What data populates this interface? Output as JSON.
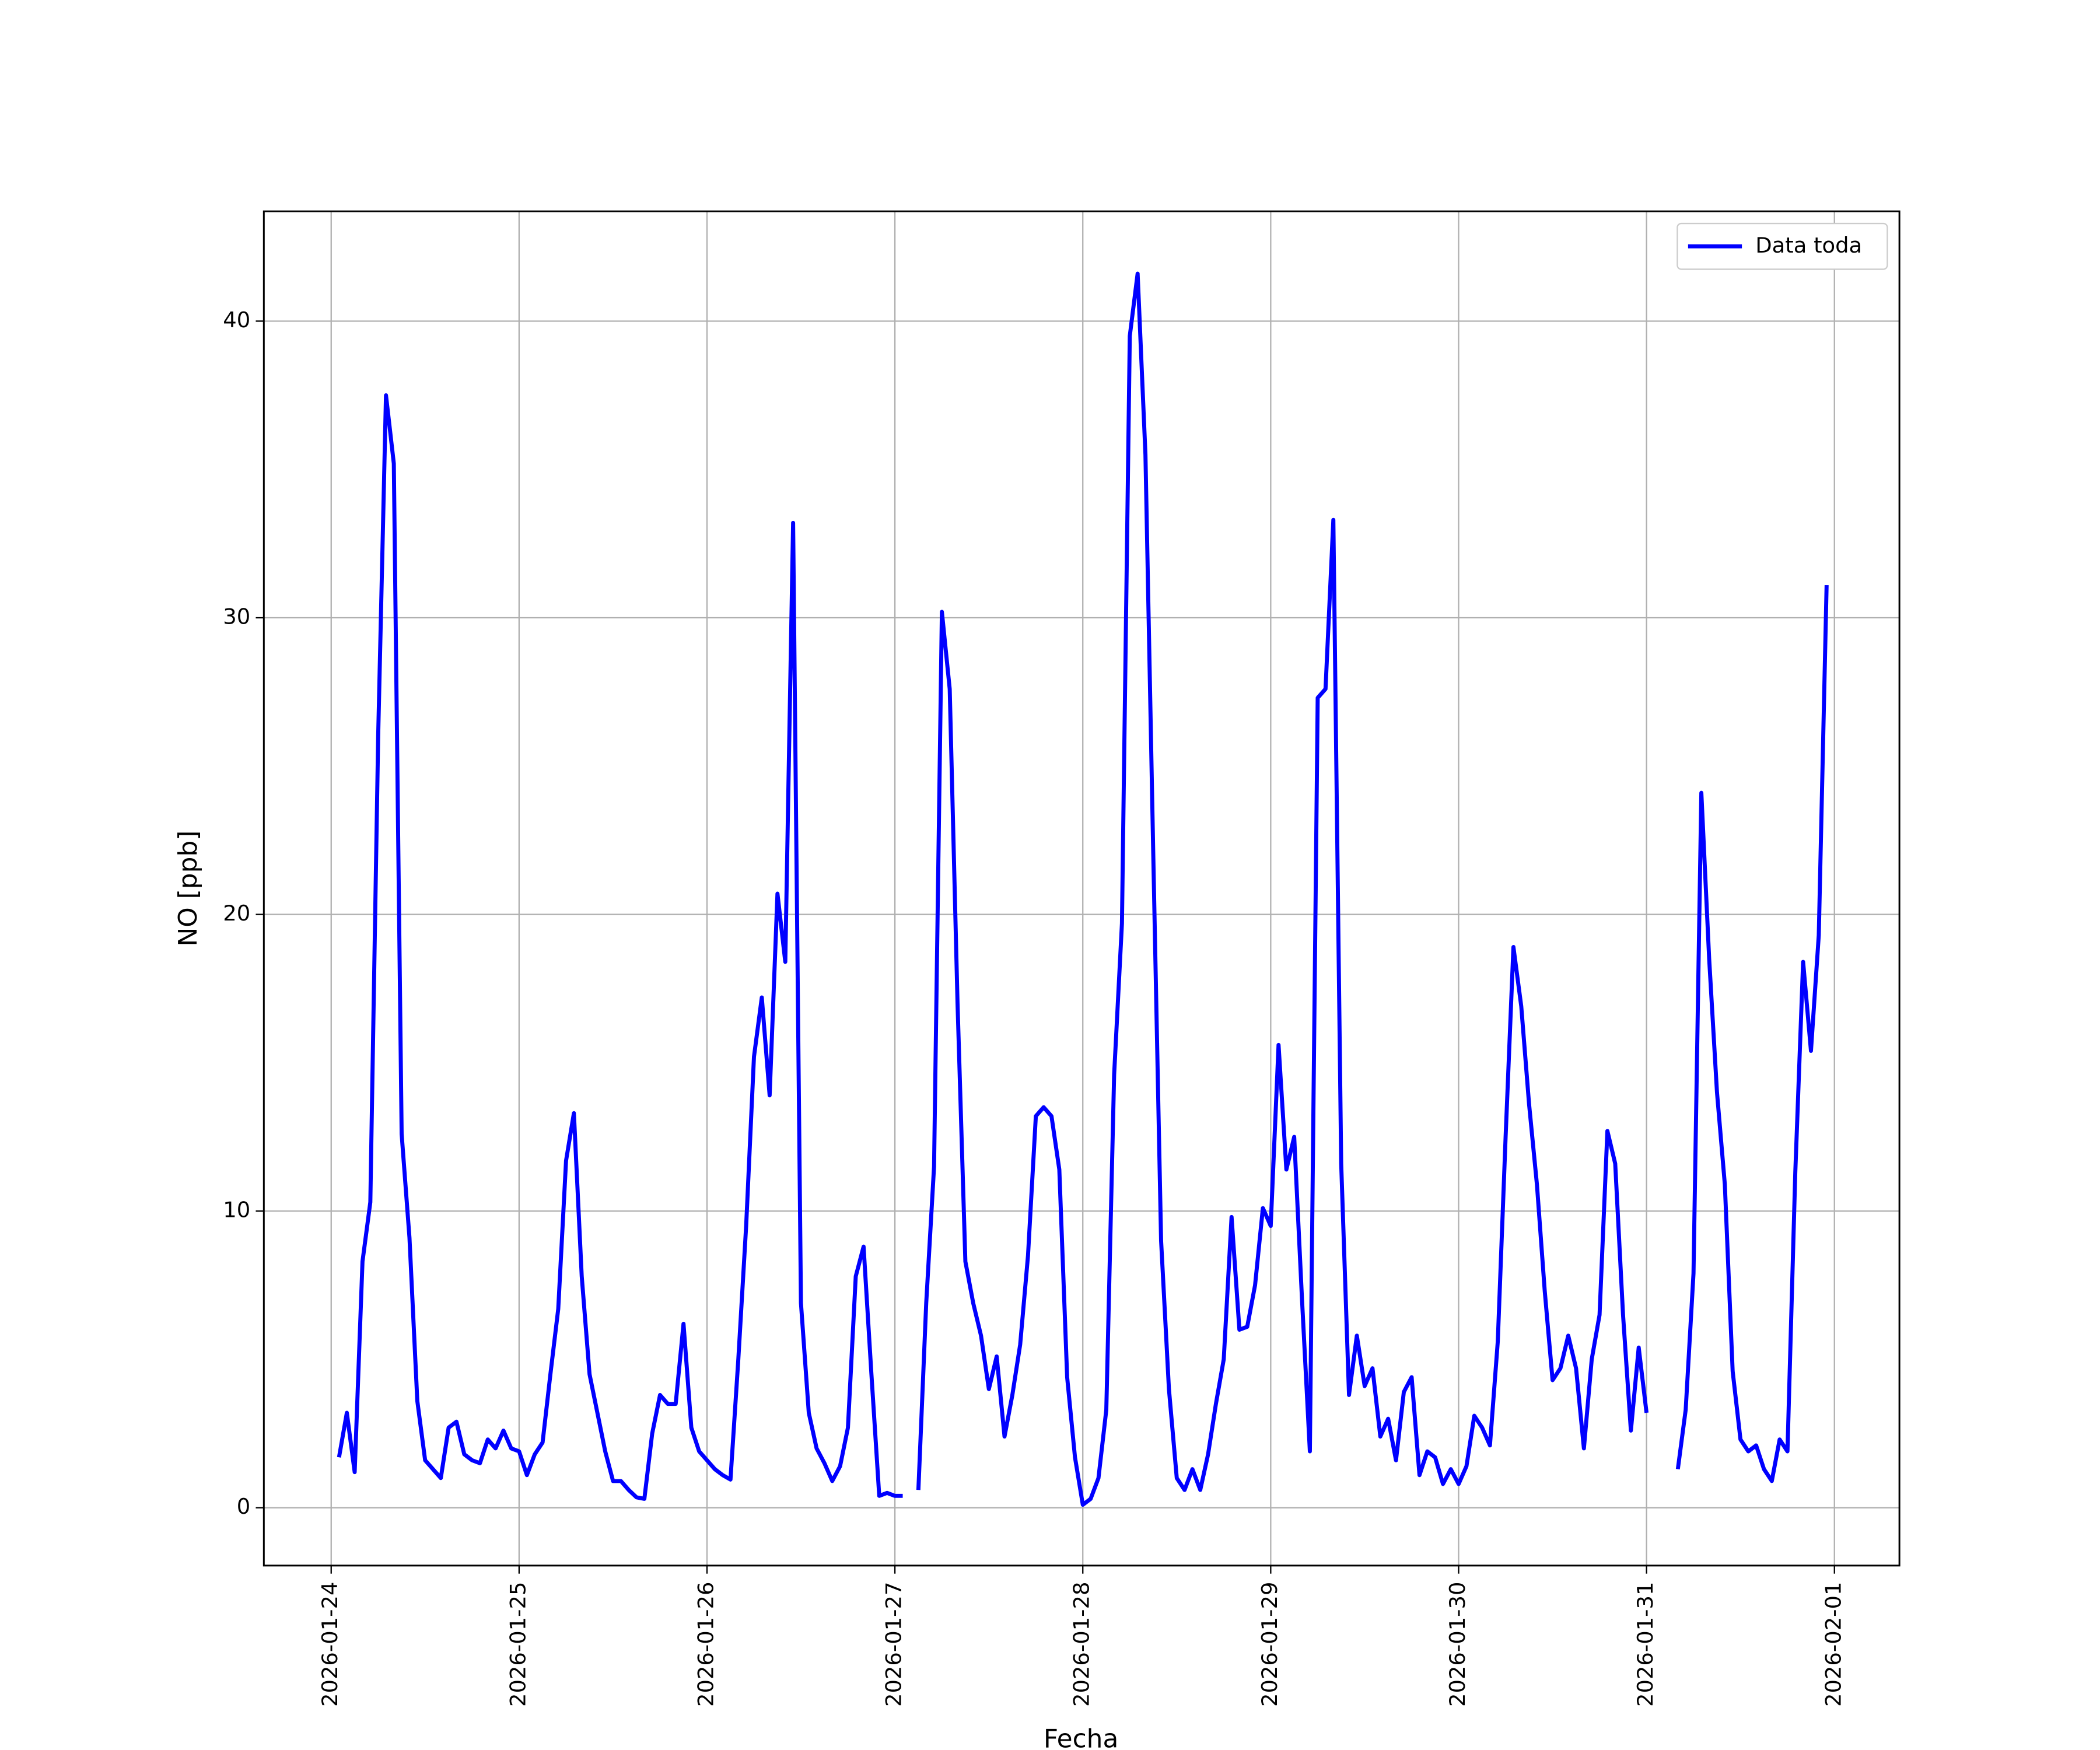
{
  "chart_data": {
    "type": "line",
    "xlabel": "Fecha",
    "ylabel": "NO [ppb]",
    "x": [
      1,
      2,
      3,
      4,
      5,
      6,
      7,
      8,
      9,
      10,
      11,
      12,
      13,
      14,
      15,
      16,
      17,
      18,
      19,
      20,
      21,
      22,
      23,
      24,
      25,
      26,
      27,
      28,
      29,
      30,
      31,
      32,
      33,
      34,
      35,
      36,
      37,
      38,
      39,
      40,
      41,
      42,
      43,
      44,
      45,
      46,
      47,
      48,
      49,
      50,
      51,
      52,
      53,
      54,
      55,
      56,
      57,
      58,
      59,
      60,
      61,
      62,
      63,
      64,
      65,
      66,
      67,
      68,
      69,
      70,
      71,
      72,
      73,
      74,
      75,
      76,
      77,
      78,
      79,
      80,
      81,
      82,
      83,
      84,
      85,
      86,
      87,
      88,
      89,
      90,
      91,
      92,
      93,
      94,
      95,
      96,
      97,
      98,
      99,
      100,
      101,
      102,
      103,
      104,
      105,
      106,
      107,
      108,
      109,
      110,
      111,
      112,
      113,
      114,
      115,
      116,
      117,
      118,
      119,
      120,
      121,
      122,
      123,
      124,
      125,
      126,
      127,
      128,
      129,
      130,
      131,
      132,
      133,
      134,
      135,
      136,
      137,
      138,
      139,
      140,
      141,
      142,
      143,
      144,
      145,
      146,
      147,
      148,
      149,
      150,
      151,
      152,
      153,
      154,
      155,
      156,
      157,
      158,
      159,
      160,
      161,
      162,
      163,
      164,
      165,
      166,
      167,
      168,
      169,
      170,
      171,
      172,
      173,
      174,
      175,
      176,
      177,
      178,
      179,
      180,
      181,
      182,
      183,
      184,
      185,
      186,
      187,
      188,
      189,
      190,
      191
    ],
    "series": [
      {
        "name": "Data toda",
        "color": "#0000ff",
        "values": [
          1.7,
          3.2,
          1.2,
          8.3,
          10.3,
          26,
          37.5,
          35.2,
          12.6,
          9.1,
          3.6,
          1.6,
          1.3,
          1.0,
          2.7,
          2.9,
          1.8,
          1.6,
          1.5,
          2.3,
          2.0,
          2.6,
          2.0,
          1.9,
          1.1,
          1.8,
          2.2,
          4.5,
          6.7,
          11.7,
          13.3,
          7.8,
          4.5,
          3.2,
          1.9,
          0.9,
          0.9,
          0.6,
          0.35,
          0.3,
          2.5,
          3.8,
          3.5,
          3.5,
          6.2,
          2.7,
          1.9,
          1.6,
          1.3,
          1.1,
          0.95,
          5.0,
          9.5,
          15.2,
          17.2,
          13.9,
          20.7,
          18.4,
          33.2,
          6.9,
          3.2,
          2.0,
          1.5,
          0.9,
          1.4,
          2.7,
          7.8,
          8.8,
          4.5,
          0.4,
          0.5,
          0.4,
          0.4,
          null,
          0.6,
          6.9,
          11.5,
          30.2,
          27.6,
          17.0,
          8.3,
          6.9,
          5.8,
          4.0,
          5.1,
          2.4,
          3.8,
          5.5,
          8.5,
          13.2,
          13.5,
          13.2,
          11.4,
          4.4,
          1.7,
          0.1,
          0.3,
          1.0,
          3.3,
          14.6,
          19.7,
          39.5,
          41.6,
          35.5,
          22.0,
          9.0,
          4.0,
          1.0,
          0.6,
          1.3,
          0.6,
          1.8,
          3.5,
          5.0,
          9.8,
          6.0,
          6.1,
          7.5,
          10.1,
          9.5,
          15.6,
          11.4,
          12.5,
          7.0,
          1.9,
          27.3,
          27.6,
          33.3,
          11.6,
          3.8,
          5.8,
          4.1,
          4.7,
          2.4,
          3.0,
          1.6,
          3.9,
          4.4,
          1.1,
          1.9,
          1.7,
          0.8,
          1.3,
          0.8,
          1.4,
          3.1,
          2.7,
          2.1,
          5.6,
          12.5,
          18.9,
          16.9,
          13.6,
          10.9,
          7.3,
          4.3,
          4.7,
          5.8,
          4.7,
          2.0,
          5.0,
          6.5,
          12.7,
          11.6,
          6.5,
          2.6,
          5.4,
          3.2,
          null,
          null,
          null,
          1.3,
          3.3,
          7.9,
          24.1,
          18.5,
          14.0,
          10.9,
          4.6,
          2.3,
          1.9,
          2.1,
          1.3,
          0.9,
          2.3,
          1.9,
          11.3,
          18.4,
          15.4,
          19.3,
          31.1
        ]
      }
    ],
    "xlim": [
      -8.6,
      200.3
    ],
    "xticks": [
      {
        "value": 0,
        "label": "2026-01-24"
      },
      {
        "value": 24,
        "label": "2026-01-25"
      },
      {
        "value": 48,
        "label": "2026-01-26"
      },
      {
        "value": 72,
        "label": "2026-01-27"
      },
      {
        "value": 96,
        "label": "2026-01-28"
      },
      {
        "value": 120,
        "label": "2026-01-29"
      },
      {
        "value": 144,
        "label": "2026-01-30"
      },
      {
        "value": 168,
        "label": "2026-01-31"
      },
      {
        "value": 192,
        "label": "2026-02-01"
      }
    ],
    "ylim": [
      -1.95,
      43.7
    ],
    "yticks": [
      0,
      10,
      20,
      30,
      40
    ],
    "grid": true,
    "legend": "upper right"
  }
}
